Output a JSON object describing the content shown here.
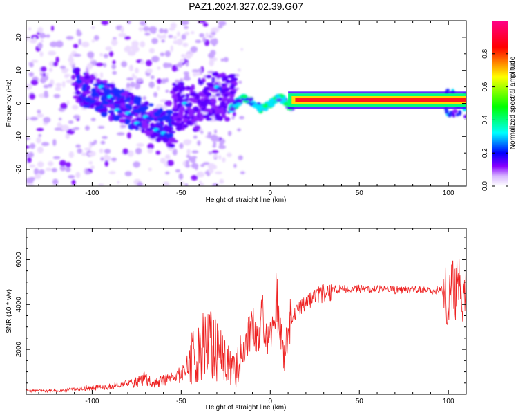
{
  "figure": {
    "title": "PAZ1.2024.327.02.39.G07"
  },
  "chart_data": [
    {
      "type": "heatmap",
      "title": "PAZ1.2024.327.02.39.G07",
      "xlabel": "Height of straight line (km)",
      "ylabel": "Frequency (Hz)",
      "xlim": [
        -137,
        110
      ],
      "ylim": [
        -25,
        25
      ],
      "x_ticks": [
        -100,
        -50,
        0,
        50,
        100
      ],
      "y_ticks": [
        -20,
        -10,
        0,
        10,
        20
      ],
      "colorbar": {
        "label": "Normalized spectral amplitude",
        "range": [
          0.0,
          1.0
        ],
        "ticks": [
          0.0,
          0.2,
          0.4,
          0.6,
          0.8
        ],
        "tick_labels": [
          "0.0",
          "0.2",
          "0.4",
          "0.6",
          "0.8"
        ],
        "colormap": [
          "#ffffff",
          "#d8b8ff",
          "#8800ff",
          "#0000ff",
          "#00ffff",
          "#00ff00",
          "#ffff00",
          "#ff0000",
          "#ff0088"
        ]
      },
      "features": [
        {
          "x_range": [
            -137,
            -95
          ],
          "frequency_range": [
            -25,
            25
          ],
          "amplitude": "low (scattered)"
        },
        {
          "x_range": [
            -95,
            -55
          ],
          "frequency_center": [
            5,
            -7
          ],
          "amplitude": "0.2-0.4"
        },
        {
          "x_range": [
            -55,
            -20
          ],
          "frequency_center": [
            0,
            3
          ],
          "amplitude": "0.1-0.2"
        },
        {
          "x_range": [
            -20,
            10
          ],
          "frequency_center": [
            0,
            2
          ],
          "amplitude": "0.3-0.5"
        },
        {
          "x_range": [
            10,
            110
          ],
          "frequency": 1,
          "amplitude": "0.8-1.0"
        }
      ]
    },
    {
      "type": "line",
      "xlabel": "Height of straight line (km)",
      "ylabel": "SNR (10 * v/v)",
      "xlim": [
        -137,
        110
      ],
      "ylim": [
        0,
        7400
      ],
      "x_ticks": [
        -100,
        -50,
        0,
        50,
        100
      ],
      "y_ticks": [
        2000,
        4000,
        6000
      ],
      "series": [
        {
          "color": "#ee2222",
          "x": [
            -137,
            -120,
            -100,
            -90,
            -80,
            -75,
            -70,
            -65,
            -60,
            -55,
            -50,
            -45,
            -40,
            -35,
            -30,
            -25,
            -20,
            -15,
            -12,
            -10,
            -8,
            -6,
            -4,
            -2,
            0,
            2,
            4,
            6,
            8,
            10,
            15,
            20,
            25,
            30,
            35,
            40,
            50,
            60,
            70,
            80,
            90,
            95,
            98,
            100,
            102,
            104,
            106,
            108,
            110
          ],
          "y": [
            150,
            150,
            300,
            350,
            450,
            550,
            700,
            500,
            600,
            700,
            900,
            1500,
            2000,
            2200,
            2000,
            1500,
            1000,
            2000,
            2800,
            3000,
            2600,
            2900,
            3400,
            2500,
            2500,
            3800,
            4200,
            2500,
            1500,
            3000,
            3700,
            4000,
            4300,
            4500,
            4650,
            4700,
            4700,
            4700,
            4650,
            4650,
            4600,
            4700,
            4600,
            4000,
            5000,
            4200,
            5800,
            4000,
            4600
          ]
        }
      ]
    }
  ]
}
